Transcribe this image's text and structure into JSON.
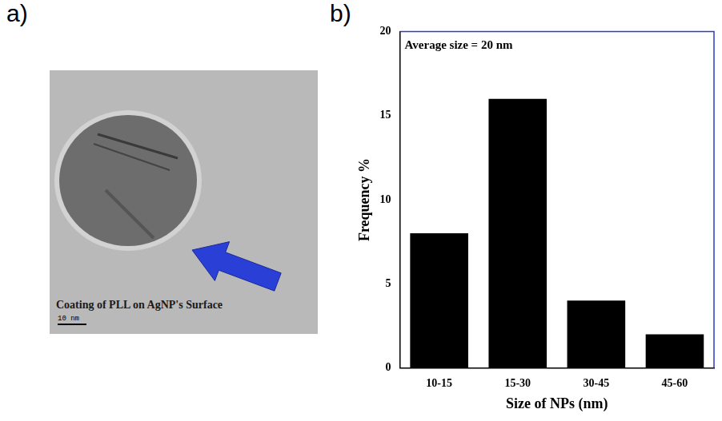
{
  "panel_labels": [
    "a)",
    "b)"
  ],
  "image_panel": {
    "annotation": "Coating of PLL on AgNP's Surface",
    "scale_bar": "10 nm"
  },
  "chart_data": {
    "type": "bar",
    "annotation": "Average size = 20 nm",
    "categories": [
      "10-15",
      "15-30",
      "30-45",
      "45-60"
    ],
    "values": [
      8,
      16,
      4,
      2
    ],
    "color": "#000000",
    "xlabel": "Size of NPs (nm)",
    "ylabel": "Frequency %",
    "ylim": [
      0,
      20
    ],
    "yticks": [
      0,
      5,
      10,
      15,
      20
    ],
    "grid": false
  }
}
